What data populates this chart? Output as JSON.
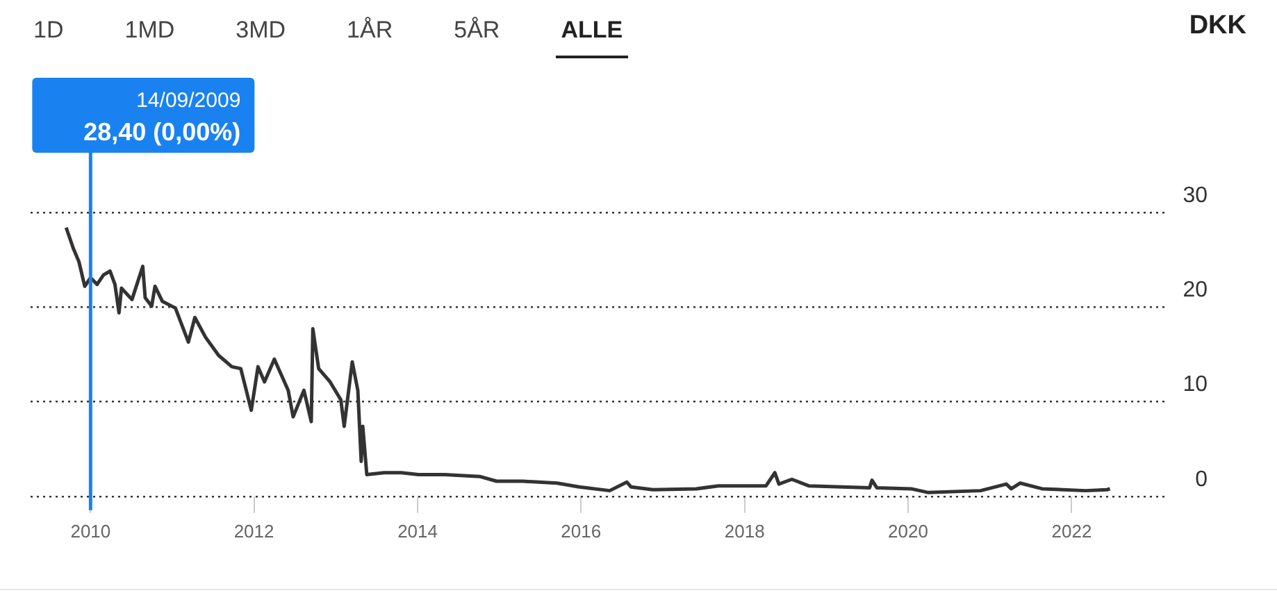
{
  "chart_data": {
    "type": "line",
    "x": [
      "2009-09-14",
      "2009-10-16",
      "2009-11-10",
      "2009-12-06",
      "2010-01-01",
      "2010-01-30",
      "2010-02-28",
      "2010-03-29",
      "2010-04-20",
      "2010-05-08",
      "2010-05-19",
      "2010-07-05",
      "2010-08-22",
      "2010-09-02",
      "2010-10-01",
      "2010-10-16",
      "2010-11-18",
      "2011-01-15",
      "2011-03-14",
      "2011-04-12",
      "2011-05-30",
      "2011-07-27",
      "2011-09-24",
      "2011-11-03",
      "2011-12-20",
      "2012-01-19",
      "2012-02-17",
      "2012-04-01",
      "2012-06-02",
      "2012-06-24",
      "2012-08-11",
      "2012-09-13",
      "2012-09-20",
      "2012-10-16",
      "2012-12-06",
      "2013-01-23",
      "2013-02-07",
      "2013-03-15",
      "2013-04-09",
      "2013-04-24",
      "2013-05-01",
      "2013-05-19",
      "2013-08-04",
      "2013-10-20",
      "2014-01-05",
      "2014-05-01",
      "2014-10-05",
      "2014-12-20",
      "2015-04-16",
      "2015-09-16",
      "2015-12-24",
      "2016-05-08",
      "2016-07-24",
      "2016-08-11",
      "2016-11-18",
      "2017-05-30",
      "2017-09-06",
      "2018-04-06",
      "2018-05-16",
      "2018-06-03",
      "2018-07-31",
      "2018-10-16",
      "2019-07-13",
      "2019-07-24",
      "2019-08-15",
      "2020-01-15",
      "2020-04-01",
      "2020-11-20",
      "2021-03-15",
      "2021-04-06",
      "2021-05-16",
      "2021-08-22",
      "2022-03-04",
      "2022-06-07",
      "2022-06-21"
    ],
    "series": [
      {
        "color": "#333333",
        "values": [
          28.4,
          26.2,
          24.8,
          22.2,
          23.1,
          22.4,
          23.4,
          23.8,
          22.4,
          19.4,
          22.0,
          20.8,
          24.3,
          21.0,
          20.1,
          22.2,
          20.6,
          19.9,
          16.3,
          18.9,
          16.8,
          14.9,
          13.7,
          13.5,
          9.1,
          13.7,
          12.1,
          14.5,
          11.2,
          8.4,
          11.2,
          7.9,
          17.7,
          13.5,
          12.1,
          10.2,
          7.4,
          14.2,
          11.2,
          3.7,
          7.4,
          2.3,
          2.5,
          2.5,
          2.3,
          2.3,
          2.1,
          1.6,
          1.6,
          1.4,
          1.0,
          0.6,
          1.5,
          1.0,
          0.7,
          0.8,
          1.1,
          1.1,
          2.5,
          1.3,
          1.8,
          1.1,
          0.9,
          1.7,
          0.9,
          0.8,
          0.4,
          0.6,
          1.3,
          0.8,
          1.4,
          0.8,
          0.6,
          0.7,
          0.8
        ]
      }
    ],
    "xlim": [
      "2009-04-08",
      "2023-03-10"
    ],
    "xticks": [
      "2010",
      "2012",
      "2014",
      "2016",
      "2018",
      "2020",
      "2022"
    ],
    "ylim": [
      0,
      30
    ],
    "yticks": [
      0,
      10,
      20,
      30
    ],
    "grid": "y",
    "legend": false,
    "marker": "none",
    "line_style": "solid",
    "ref_lines": [
      {
        "axis": "x",
        "value": "2010-01-01",
        "color": "#1a82f0"
      }
    ],
    "annotations": [
      "1D",
      "1MD",
      "3MD",
      "1ÅR",
      "5ÅR",
      "ALLE",
      "DKK",
      "14/09/2009",
      "28,40 (0,00%)"
    ]
  }
}
